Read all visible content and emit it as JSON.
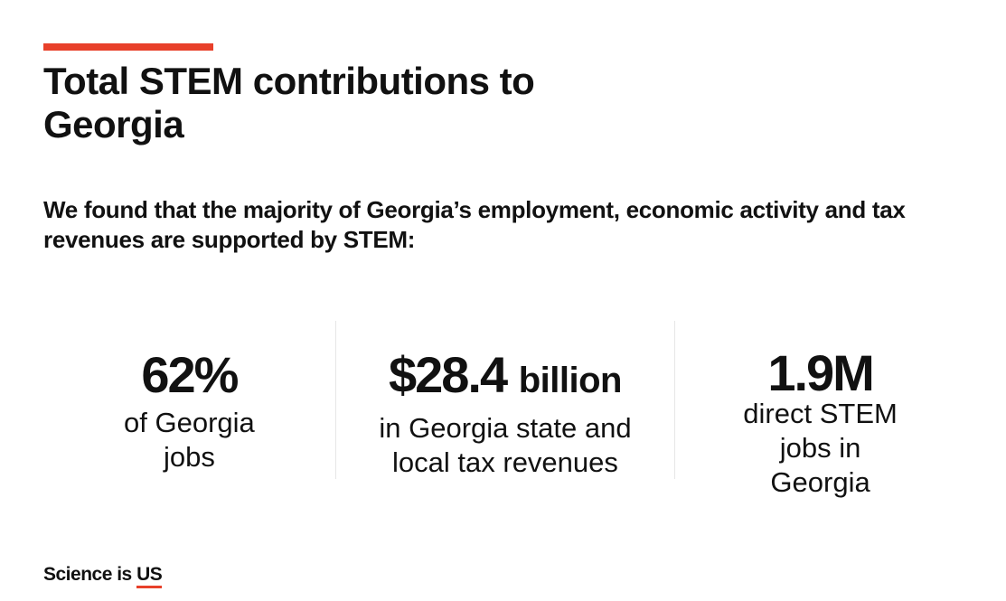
{
  "header": {
    "title": "Total STEM contributions to Georgia",
    "subtitle": "We found that the majority of Georgia’s employment, economic activity and tax revenues are supported by STEM:"
  },
  "stats": [
    {
      "value": "62%",
      "label": "of Georgia jobs"
    },
    {
      "value": "$28.4",
      "unit": "billion",
      "label": "in Georgia state and local tax revenues"
    },
    {
      "value": "1.9M",
      "label": "direct STEM jobs in Georgia"
    }
  ],
  "brand": {
    "text": "Science is",
    "highlight": "US"
  }
}
